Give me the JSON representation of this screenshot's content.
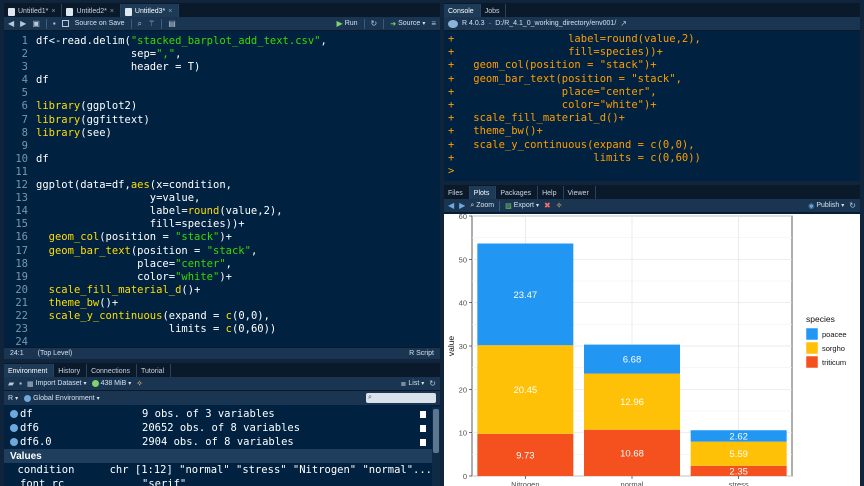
{
  "editor": {
    "tabs": [
      {
        "label": "Untitled1*",
        "active": false
      },
      {
        "label": "Untitled2*",
        "active": false
      },
      {
        "label": "Untitled3*",
        "active": true
      }
    ],
    "toolbar": {
      "source_on_save": "Source on Save",
      "run": "Run",
      "source": "Source"
    },
    "lines": [
      {
        "n": "1",
        "html": "df<-read.delim(<span class='s'>\"stacked_barplot_add_text.csv\"</span>,"
      },
      {
        "n": "2",
        "html": "               sep=<span class='s'>\",\"</span>,"
      },
      {
        "n": "3",
        "html": "               header = T)"
      },
      {
        "n": "4",
        "html": "df"
      },
      {
        "n": "5",
        "html": ""
      },
      {
        "n": "6",
        "html": "<span class='f'>library</span>(ggplot2)"
      },
      {
        "n": "7",
        "html": "<span class='f'>library</span>(ggfittext)"
      },
      {
        "n": "8",
        "html": "<span class='f'>library</span>(see)"
      },
      {
        "n": "9",
        "html": ""
      },
      {
        "n": "10",
        "html": "df"
      },
      {
        "n": "11",
        "html": ""
      },
      {
        "n": "12",
        "html": "ggplot(data=df,<span class='f'>aes</span>(x=condition,"
      },
      {
        "n": "13",
        "html": "                  y=value,"
      },
      {
        "n": "14",
        "html": "                  label=<span class='f'>round</span>(value,2),"
      },
      {
        "n": "15",
        "html": "                  fill=species))+"
      },
      {
        "n": "16",
        "html": "  <span class='f'>geom_col</span>(position = <span class='s'>\"stack\"</span>)+"
      },
      {
        "n": "17",
        "html": "  <span class='f'>geom_bar_text</span>(position = <span class='s'>\"stack\"</span>,"
      },
      {
        "n": "18",
        "html": "                place=<span class='s'>\"center\"</span>,"
      },
      {
        "n": "19",
        "html": "                color=<span class='s'>\"white\"</span>)+"
      },
      {
        "n": "20",
        "html": "  <span class='f'>scale_fill_material_d</span>()+"
      },
      {
        "n": "21",
        "html": "  <span class='f'>theme_bw</span>()+"
      },
      {
        "n": "22",
        "html": "  <span class='f'>scale_y_continuous</span>(expand = <span class='f'>c</span>(0,0),"
      },
      {
        "n": "23",
        "html": "                     limits = <span class='f'>c</span>(0,60))"
      },
      {
        "n": "24",
        "html": ""
      }
    ],
    "status": {
      "position": "24:1",
      "scope": "(Top Level)",
      "filetype": "R Script"
    }
  },
  "console": {
    "tabs": [
      {
        "label": "Console",
        "active": true
      },
      {
        "label": "Jobs",
        "active": false
      }
    ],
    "version": "R 4.0.3",
    "path": "D:/R_4.1_0_working_directory/env001/",
    "lines": [
      "+                  label=round(value,2),",
      "+                  fill=species))+",
      "+   geom_col(position = \"stack\")+",
      "+   geom_bar_text(position = \"stack\",",
      "+                 place=\"center\",",
      "+                 color=\"white\")+",
      "+   scale_fill_material_d()+",
      "+   theme_bw()+",
      "+   scale_y_continuous(expand = c(0,0),",
      "+                      limits = c(0,60))",
      ">"
    ]
  },
  "environment": {
    "tabs": [
      {
        "label": "Environment",
        "active": true
      },
      {
        "label": "History",
        "active": false
      },
      {
        "label": "Connections",
        "active": false
      },
      {
        "label": "Tutorial",
        "active": false
      }
    ],
    "toolbar": {
      "import": "Import Dataset",
      "memory": "438 MiB",
      "view": "List"
    },
    "scope": {
      "lang": "R",
      "env": "Global Environment"
    },
    "data_rows": [
      {
        "name": "df",
        "desc": "9 obs. of 3 variables"
      },
      {
        "name": "df6",
        "desc": "20652 obs. of 8 variables"
      },
      {
        "name": "df6.0",
        "desc": "2904 obs. of 8 variables"
      }
    ],
    "values_header": "Values",
    "value_rows": [
      {
        "name": "condition",
        "desc": "chr [1:12] \"normal\" \"stress\" \"Nitrogen\" \"normal\"..."
      },
      {
        "name": "font_rc",
        "desc": "\"serif\""
      }
    ]
  },
  "files": {
    "tabs": [
      {
        "label": "Files",
        "active": false
      },
      {
        "label": "Plots",
        "active": true
      },
      {
        "label": "Packages",
        "active": false
      },
      {
        "label": "Help",
        "active": false
      },
      {
        "label": "Viewer",
        "active": false
      }
    ],
    "toolbar": {
      "zoom": "Zoom",
      "export": "Export",
      "publish": "Publish"
    }
  },
  "chart_data": {
    "type": "bar",
    "stacked": true,
    "categories": [
      "Nitrogen",
      "normal",
      "stress"
    ],
    "series": [
      {
        "name": "triticum",
        "color": "#f4511e",
        "values": [
          9.73,
          10.68,
          2.35
        ]
      },
      {
        "name": "sorgho",
        "color": "#ffc107",
        "values": [
          20.45,
          12.96,
          5.59
        ]
      },
      {
        "name": "poacee",
        "color": "#2196f3",
        "values": [
          23.47,
          6.68,
          2.62
        ]
      }
    ],
    "legend_order": [
      "poacee",
      "sorgho",
      "triticum"
    ],
    "legend_title": "species",
    "ylabel": "value",
    "xlabel": "",
    "ylim": [
      0,
      60
    ],
    "yticks": [
      0,
      10,
      20,
      30,
      40,
      50,
      60
    ],
    "grid": true,
    "legend_position": "right"
  }
}
